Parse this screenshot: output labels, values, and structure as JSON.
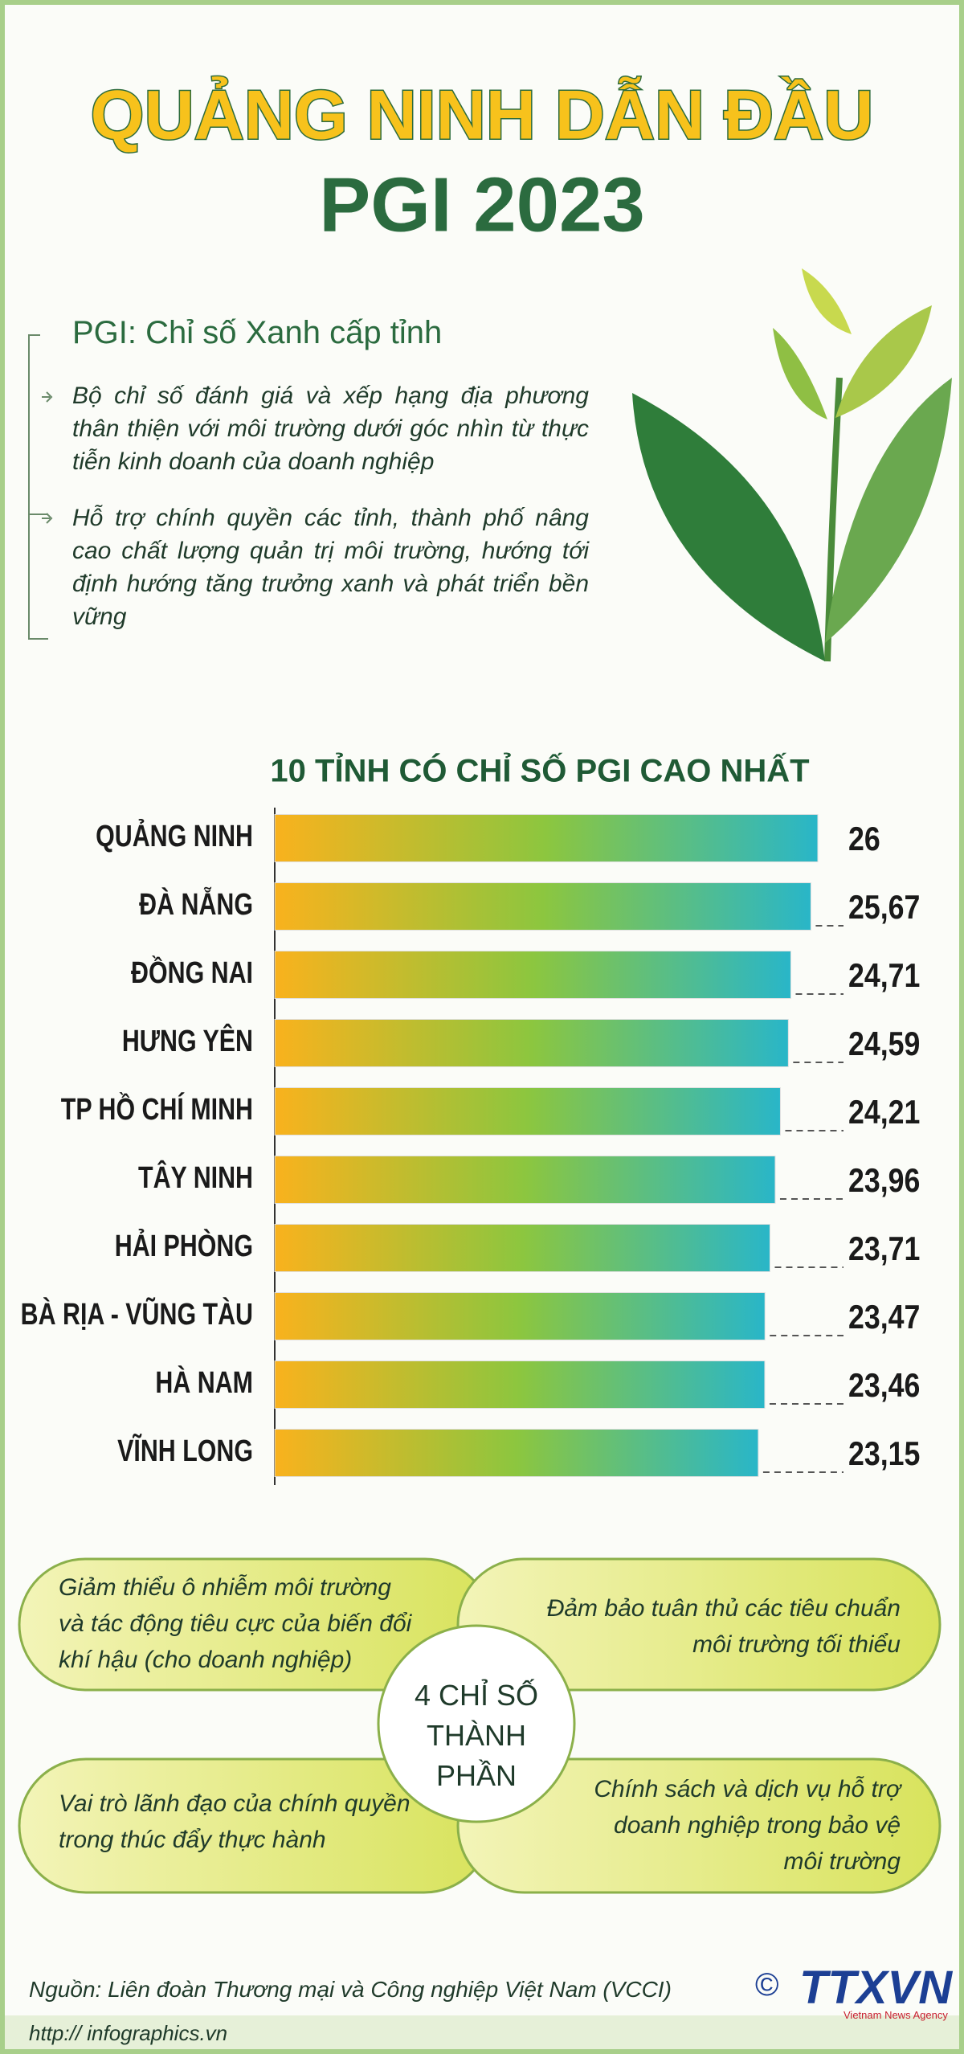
{
  "header": {
    "title": "QUẢNG NINH DẪN ĐẦU",
    "subtitle": "PGI 2023"
  },
  "intro": {
    "heading": "PGI: Chỉ số Xanh cấp tỉnh",
    "items": [
      "Bộ chỉ số đánh giá và xếp hạng địa phương thân thiện với môi trường dưới góc nhìn từ thực tiễn kinh doanh của doanh nghiệp",
      "Hỗ trợ chính quyền các tỉnh, thành phố nâng cao chất lượng quản trị môi trường, hướng tới định hướng tăng trưởng xanh và phát triển bền vững"
    ]
  },
  "chart_data": {
    "type": "bar",
    "title": "10 TỈNH CÓ CHỈ SỐ PGI CAO NHẤT",
    "categories": [
      "QUẢNG NINH",
      "ĐÀ NẴNG",
      "ĐỒNG NAI",
      "HƯNG YÊN",
      "TP HỒ CHÍ MINH",
      "TÂY NINH",
      "HẢI PHÒNG",
      "BÀ RỊA - VŨNG TÀU",
      "HÀ NAM",
      "VĨNH LONG"
    ],
    "values": [
      26,
      25.67,
      24.71,
      24.59,
      24.21,
      23.96,
      23.71,
      23.47,
      23.46,
      23.15
    ],
    "value_labels": [
      "26",
      "25,67",
      "24,71",
      "24,59",
      "24,21",
      "23,96",
      "23,71",
      "23,47",
      "23,46",
      "23,15"
    ],
    "colors": [
      "#f9b21d",
      "#8cc63f",
      "#29b6c8"
    ]
  },
  "components": {
    "center": "4 CHỈ SỐ THÀNH PHẦN",
    "items": [
      "Giảm thiểu ô nhiễm môi trường và tác động tiêu cực của biến đổi khí hậu (cho doanh nghiệp)",
      "Đảm bảo tuân thủ các tiêu chuẩn môi trường tối thiểu",
      "Vai trò lãnh đạo của chính quyền trong thúc đẩy thực hành",
      "Chính sách và dịch vụ hỗ trợ doanh nghiệp trong bảo vệ môi trường"
    ]
  },
  "footer": {
    "source": "Nguồn: Liên đoàn Thương mại và Công nghiệp Việt Nam (VCCI)",
    "website": "http:// infographics.vn",
    "logo": "TTXVN",
    "agency": "Vietnam News Agency"
  }
}
